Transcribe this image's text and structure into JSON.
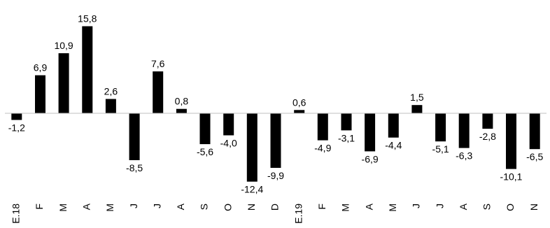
{
  "chart_data": {
    "type": "bar",
    "categories": [
      "E.18",
      "F",
      "M",
      "A",
      "M",
      "J",
      "J",
      "A",
      "S",
      "O",
      "N",
      "D",
      "E.19",
      "F",
      "M",
      "A",
      "M",
      "J",
      "J",
      "A",
      "S",
      "O",
      "N"
    ],
    "values": [
      -1.2,
      6.9,
      10.9,
      15.8,
      2.6,
      -8.5,
      7.6,
      0.8,
      -5.6,
      -4.0,
      -12.4,
      -9.9,
      0.6,
      -4.9,
      -3.1,
      -6.9,
      -4.4,
      1.5,
      -5.1,
      -6.3,
      -2.8,
      -10.1,
      -6.5
    ],
    "value_labels": [
      "-1,2",
      "6,9",
      "10,9",
      "15,8",
      "2,6",
      "-8,5",
      "7,6",
      "0,8",
      "-5,6",
      "-4,0",
      "-12,4",
      "-9,9",
      "0,6",
      "-4,9",
      "-3,1",
      "-6,9",
      "-4,4",
      "1,5",
      "-5,1",
      "-6,3",
      "-2,8",
      "-10,1",
      "-6,5"
    ],
    "bar_color": "#000000",
    "axis_color": "#bfbfbf",
    "grid": false,
    "legend": "none"
  }
}
